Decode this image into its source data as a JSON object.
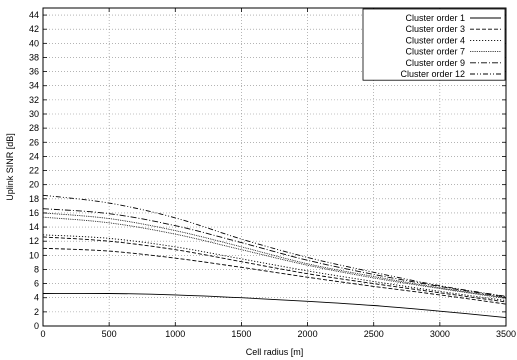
{
  "chart_data": {
    "type": "line",
    "xlabel": "Cell radius [m]",
    "ylabel": "Uplink SINR [dB]",
    "xlim": [
      0,
      3500
    ],
    "ylim": [
      0,
      45
    ],
    "x_ticks": [
      0,
      500,
      1000,
      1500,
      2000,
      2500,
      3000,
      3500
    ],
    "y_ticks": [
      0,
      2,
      4,
      6,
      8,
      10,
      12,
      14,
      16,
      18,
      20,
      22,
      24,
      26,
      28,
      30,
      32,
      34,
      36,
      38,
      40,
      42,
      44
    ],
    "grid": "on (dotted)",
    "legend_position": "top-right",
    "series": [
      {
        "name": "Cluster order 1",
        "style": "solid",
        "color": "#000000",
        "bands": [
          {
            "x": [
              0,
              500,
              1000,
              1500,
              2000,
              2500,
              3000,
              3500
            ],
            "y": [
              4.6,
              4.6,
              4.4,
              4.0,
              3.5,
              2.9,
              2.1,
              1.2
            ]
          }
        ]
      },
      {
        "name": "Cluster order 3",
        "style": "dashed",
        "color": "#000000",
        "bands": [
          {
            "x": [
              0,
              500,
              1000,
              1500,
              2000,
              2500,
              3000,
              3500
            ],
            "y": [
              11.0,
              10.6,
              9.6,
              8.3,
              6.9,
              5.6,
              4.4,
              3.1
            ]
          },
          {
            "x": [
              0,
              500,
              1000,
              1500,
              2000,
              2500,
              3000,
              3500
            ],
            "y": [
              12.6,
              12.0,
              10.8,
              9.1,
              7.4,
              6.0,
              4.7,
              3.4
            ]
          }
        ]
      },
      {
        "name": "Cluster order 4",
        "style": "dotted",
        "color": "#000000",
        "bands": [
          {
            "x": [
              0,
              500,
              1000,
              1500,
              2000,
              2500,
              3000,
              3500
            ],
            "y": [
              12.9,
              12.4,
              11.2,
              9.5,
              7.8,
              6.3,
              4.9,
              3.6
            ]
          }
        ]
      },
      {
        "name": "Cluster order 7",
        "style": "dense-dotted",
        "color": "#000000",
        "bands": [
          {
            "x": [
              0,
              500,
              1000,
              1500,
              2000,
              2500,
              3000,
              3500
            ],
            "y": [
              15.4,
              14.6,
              13.0,
              10.8,
              8.6,
              6.8,
              5.3,
              3.9
            ]
          },
          {
            "x": [
              0,
              500,
              1000,
              1500,
              2000,
              2500,
              3000,
              3500
            ],
            "y": [
              16.0,
              15.2,
              13.5,
              11.2,
              8.8,
              7.0,
              5.4,
              4.0
            ]
          }
        ]
      },
      {
        "name": "Cluster order 9",
        "style": "dash-dot",
        "color": "#000000",
        "bands": [
          {
            "x": [
              0,
              500,
              1000,
              1500,
              2000,
              2500,
              3000,
              3500
            ],
            "y": [
              16.6,
              15.9,
              14.2,
              11.8,
              9.3,
              7.3,
              5.6,
              4.1
            ]
          }
        ]
      },
      {
        "name": "Cluster order 12",
        "style": "dash-dot-dot",
        "color": "#000000",
        "bands": [
          {
            "x": [
              0,
              500,
              1000,
              1500,
              2000,
              2500,
              3000,
              3500
            ],
            "y": [
              18.5,
              17.4,
              15.3,
              12.3,
              9.7,
              7.6,
              5.7,
              4.2
            ]
          }
        ]
      }
    ]
  }
}
